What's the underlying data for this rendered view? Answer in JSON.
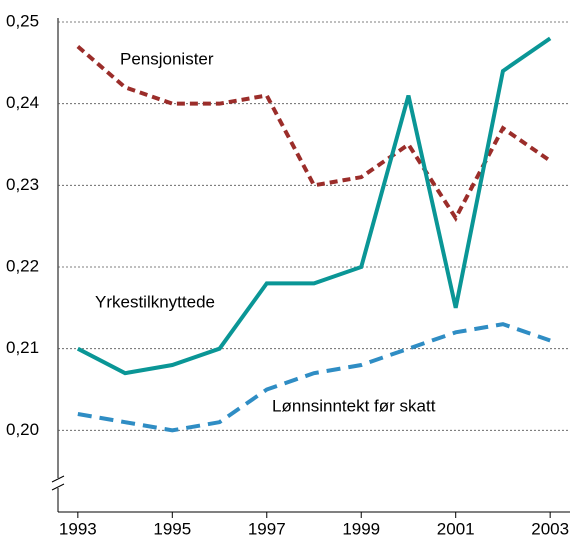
{
  "chart_data": {
    "type": "line",
    "x": [
      1993,
      1994,
      1995,
      1996,
      1997,
      1998,
      1999,
      2000,
      2001,
      2002,
      2003
    ],
    "series": [
      {
        "name": "Pensjonister",
        "color": "#9b2d2a",
        "dash": "dashed",
        "values": [
          0.247,
          0.242,
          0.24,
          0.24,
          0.241,
          0.23,
          0.231,
          0.235,
          0.226,
          0.237,
          0.233
        ]
      },
      {
        "name": "Yrkestilknyttede",
        "color": "#0a9696",
        "dash": "solid",
        "values": [
          0.21,
          0.207,
          0.208,
          0.21,
          0.218,
          0.218,
          0.22,
          0.241,
          0.215,
          0.244,
          0.248
        ]
      },
      {
        "name": "Lønnsinntekt før skatt",
        "color": "#2f8dc4",
        "dash": "longdash",
        "values": [
          0.202,
          0.201,
          0.2,
          0.201,
          0.205,
          0.207,
          0.208,
          0.21,
          0.212,
          0.213,
          0.211
        ]
      }
    ],
    "xlim": [
      1992.58,
      2003.42
    ],
    "xticks": [
      1993,
      1995,
      1997,
      1999,
      2001,
      2003
    ],
    "ylim": [
      0.19,
      0.25
    ],
    "yticks": [
      {
        "value": 0.2,
        "label": "0,20"
      },
      {
        "value": 0.21,
        "label": "0,21"
      },
      {
        "value": 0.22,
        "label": "0,22"
      },
      {
        "value": 0.23,
        "label": "0,23"
      },
      {
        "value": 0.24,
        "label": "0,24"
      },
      {
        "value": 0.25,
        "label": "0,25"
      }
    ],
    "grid": true
  }
}
